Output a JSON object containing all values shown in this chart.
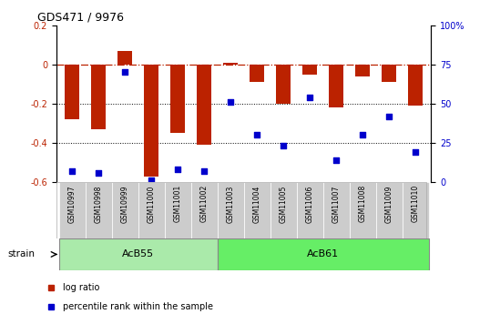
{
  "title": "GDS471 / 9976",
  "samples": [
    "GSM10997",
    "GSM10998",
    "GSM10999",
    "GSM11000",
    "GSM11001",
    "GSM11002",
    "GSM11003",
    "GSM11004",
    "GSM11005",
    "GSM11006",
    "GSM11007",
    "GSM11008",
    "GSM11009",
    "GSM11010"
  ],
  "log_ratio": [
    -0.28,
    -0.33,
    0.07,
    -0.57,
    -0.35,
    -0.41,
    0.01,
    -0.09,
    -0.2,
    -0.05,
    -0.22,
    -0.06,
    -0.09,
    -0.21
  ],
  "percentile_rank": [
    7,
    6,
    70,
    1,
    8,
    7,
    51,
    30,
    23,
    54,
    14,
    30,
    42,
    19
  ],
  "groups": [
    {
      "label": "AcB55",
      "start": 0,
      "end": 5,
      "color": "#aaeaaa"
    },
    {
      "label": "AcB61",
      "start": 6,
      "end": 13,
      "color": "#66ee66"
    }
  ],
  "bar_color": "#bb2200",
  "point_color": "#0000cc",
  "ylim_left": [
    -0.6,
    0.2
  ],
  "ylim_right": [
    0,
    100
  ],
  "yticks_left": [
    -0.6,
    -0.4,
    -0.2,
    0.0,
    0.2
  ],
  "yticks_right": [
    0,
    25,
    50,
    75,
    100
  ],
  "dotted_lines": [
    -0.2,
    -0.4
  ],
  "bar_width": 0.55,
  "strain_label": "strain",
  "legend_items": [
    {
      "label": "log ratio",
      "color": "#bb2200"
    },
    {
      "label": "percentile rank within the sample",
      "color": "#0000cc"
    }
  ],
  "tick_box_color": "#cccccc",
  "background_color": "#ffffff"
}
